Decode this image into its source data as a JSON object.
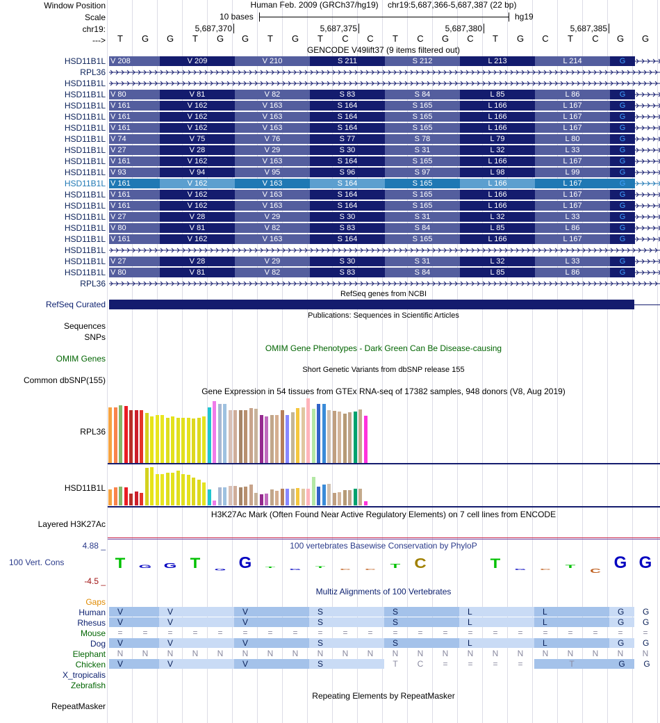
{
  "header": {
    "window_position_label": "Window Position",
    "assembly_text": "Human Feb. 2009 (GRCh37/hg19)",
    "position_text": "chr19:5,687,366-5,687,387 (22 bp)",
    "scale_label": "Scale",
    "scale_text": "10 bases",
    "scale_db": "hg19",
    "chrom_label": "chr19:",
    "strand_label": "--->",
    "coords": [
      "5,687,370",
      "5,687,375",
      "5,687,380",
      "5,687,385"
    ],
    "bases": [
      "T",
      "G",
      "G",
      "T",
      "G",
      "G",
      "T",
      "G",
      "T",
      "C",
      "C",
      "T",
      "C",
      "G",
      "C",
      "T",
      "G",
      "C",
      "T",
      "C",
      "G",
      "G"
    ]
  },
  "gencode": {
    "title": "GENCODE V49lift37 (9 items filtered out)",
    "rows": [
      {
        "label": "HSD11B1L",
        "type": "coding",
        "codons": [
          "V 208",
          "V 209",
          "V 210",
          "S 211",
          "S 212",
          "L 213",
          "L 214"
        ],
        "last": "G"
      },
      {
        "label": "RPL36",
        "type": "intron"
      },
      {
        "label": "HSD11B1L",
        "type": "intron"
      },
      {
        "label": "HSD11B1L",
        "type": "coding",
        "codons": [
          "V 80",
          "V 81",
          "V 82",
          "S 83",
          "S 84",
          "L 85",
          "L 86"
        ],
        "last": "G"
      },
      {
        "label": "HSD11B1L",
        "type": "coding",
        "codons": [
          "V 161",
          "V 162",
          "V 163",
          "S 164",
          "S 165",
          "L 166",
          "L 167"
        ],
        "last": "G"
      },
      {
        "label": "HSD11B1L",
        "type": "coding",
        "codons": [
          "V 161",
          "V 162",
          "V 163",
          "S 164",
          "S 165",
          "L 166",
          "L 167"
        ],
        "last": "G"
      },
      {
        "label": "HSD11B1L",
        "type": "coding",
        "codons": [
          "V 161",
          "V 162",
          "V 163",
          "S 164",
          "S 165",
          "L 166",
          "L 167"
        ],
        "last": "G"
      },
      {
        "label": "HSD11B1L",
        "type": "coding",
        "codons": [
          "V 74",
          "V 75",
          "V 76",
          "S 77",
          "S 78",
          "L 79",
          "L 80"
        ],
        "last": "G"
      },
      {
        "label": "HSD11B1L",
        "type": "coding",
        "codons": [
          "V 27",
          "V 28",
          "V 29",
          "S 30",
          "S 31",
          "L 32",
          "L 33"
        ],
        "last": "G"
      },
      {
        "label": "HSD11B1L",
        "type": "coding",
        "codons": [
          "V 161",
          "V 162",
          "V 163",
          "S 164",
          "S 165",
          "L 166",
          "L 167"
        ],
        "last": "G"
      },
      {
        "label": "HSD11B1L",
        "type": "coding",
        "codons": [
          "V 93",
          "V 94",
          "V 95",
          "S 96",
          "S 97",
          "L 98",
          "L 99"
        ],
        "last": "G"
      },
      {
        "label": "HSD11B1L",
        "type": "coding",
        "highlight": true,
        "codons": [
          "V 161",
          "V 162",
          "V 163",
          "S 164",
          "S 165",
          "L 166",
          "L 167"
        ],
        "last": "G"
      },
      {
        "label": "HSD11B1L",
        "type": "coding",
        "codons": [
          "V 161",
          "V 162",
          "V 163",
          "S 164",
          "S 165",
          "L 166",
          "L 167"
        ],
        "last": "G"
      },
      {
        "label": "HSD11B1L",
        "type": "coding",
        "codons": [
          "V 161",
          "V 162",
          "V 163",
          "S 164",
          "S 165",
          "L 166",
          "L 167"
        ],
        "last": "G"
      },
      {
        "label": "HSD11B1L",
        "type": "coding",
        "codons": [
          "V 27",
          "V 28",
          "V 29",
          "S 30",
          "S 31",
          "L 32",
          "L 33"
        ],
        "last": "G"
      },
      {
        "label": "HSD11B1L",
        "type": "coding",
        "codons": [
          "V 80",
          "V 81",
          "V 82",
          "S 83",
          "S 84",
          "L 85",
          "L 86"
        ],
        "last": "G"
      },
      {
        "label": "HSD11B1L",
        "type": "coding",
        "codons": [
          "V 161",
          "V 162",
          "V 163",
          "S 164",
          "S 165",
          "L 166",
          "L 167"
        ],
        "last": "G"
      },
      {
        "label": "HSD11B1L",
        "type": "intron"
      },
      {
        "label": "HSD11B1L",
        "type": "coding",
        "codons": [
          "V 27",
          "V 28",
          "V 29",
          "S 30",
          "S 31",
          "L 32",
          "L 33"
        ],
        "last": "G"
      },
      {
        "label": "HSD11B1L",
        "type": "coding",
        "codons": [
          "V 80",
          "V 81",
          "V 82",
          "S 83",
          "S 84",
          "L 85",
          "L 86"
        ],
        "last": "G"
      },
      {
        "label": "RPL36",
        "type": "intron"
      }
    ]
  },
  "refseq": {
    "title": "RefSeq genes from NCBI",
    "label": "RefSeq Curated"
  },
  "publications": {
    "title": "Publications: Sequences in Scientific Articles",
    "label_line1": "Sequences",
    "label_line2": "SNPs"
  },
  "omim": {
    "title": "OMIM Gene Phenotypes - Dark Green Can Be Disease-causing",
    "label": "OMIM Genes"
  },
  "dbsnp": {
    "title": "Short Genetic Variants from dbSNP release 155",
    "label": "Common dbSNP(155)"
  },
  "gtex": {
    "title": "Gene Expression in 54 tissues from GTEx RNA-seq of 17382 samples, 948 donors (V8, Aug 2019)",
    "colors": [
      "#f5a341",
      "#f9844b",
      "#86b86a",
      "#ea1c24",
      "#b72e28",
      "#cc1e2b",
      "#e5332a",
      "#d3d11f",
      "#e6e319",
      "#e8e51f",
      "#e8e520",
      "#dede1d",
      "#e3e11c",
      "#e0df1e",
      "#e2e01d",
      "#e4e11f",
      "#ddd81f",
      "#dcd91f",
      "#e5e31f",
      "#1fc5cf",
      "#ef7bea",
      "#a7b8d3",
      "#9ec1e0",
      "#d8c0b6",
      "#cfad9a",
      "#a68567",
      "#b8906f",
      "#c8a48b",
      "#c7b39a",
      "#952a8f",
      "#bf6abd",
      "#c1a68a",
      "#d5ae8f",
      "#b57f5a",
      "#8888ff",
      "#c5b696",
      "#f5c73e",
      "#e0c7a0",
      "#ffb4bb",
      "#b3e8a5",
      "#3163c8",
      "#3a8bd8",
      "#d0c0b0",
      "#c09f7f",
      "#d3b59a",
      "#b69a75",
      "#bfa58b",
      "#00a26d",
      "#c4aa8c",
      "#ff33dd"
    ],
    "rpl36": {
      "label": "RPL36",
      "values": [
        0.86,
        0.86,
        0.89,
        0.88,
        0.82,
        0.82,
        0.82,
        0.77,
        0.72,
        0.74,
        0.74,
        0.7,
        0.72,
        0.7,
        0.7,
        0.7,
        0.69,
        0.7,
        0.72,
        0.86,
        0.96,
        0.91,
        0.91,
        0.82,
        0.82,
        0.82,
        0.82,
        0.85,
        0.84,
        0.74,
        0.72,
        0.74,
        0.74,
        0.82,
        0.74,
        0.79,
        0.85,
        0.86,
        1.0,
        0.84,
        0.91,
        0.91,
        0.82,
        0.81,
        0.8,
        0.76,
        0.79,
        0.8,
        0.83,
        0.73
      ]
    },
    "hsd11b1l": {
      "label": "HSD11B1L",
      "values": [
        0.41,
        0.47,
        0.49,
        0.47,
        0.3,
        0.36,
        0.33,
        0.98,
        1.0,
        0.82,
        0.82,
        0.85,
        0.85,
        0.91,
        0.82,
        0.8,
        0.73,
        0.67,
        0.6,
        0.41,
        0.13,
        0.47,
        0.47,
        0.51,
        0.51,
        0.47,
        0.49,
        0.54,
        0.33,
        0.29,
        0.31,
        0.41,
        0.38,
        0.44,
        0.44,
        0.44,
        0.45,
        0.44,
        0.44,
        0.74,
        0.49,
        0.54,
        0.57,
        0.33,
        0.35,
        0.4,
        0.4,
        0.44,
        0.44,
        0.1
      ]
    }
  },
  "h3k27ac": {
    "title": "H3K27Ac Mark (Often Found Near Active Regulatory Elements) on 7 cell lines from ENCODE",
    "label": "Layered H3K27Ac"
  },
  "phylop": {
    "title": "100 vertebrates Basewise Conservation by PhyloP",
    "label": "100 Vert. Cons",
    "max": "4.88 _",
    "min": "-4.5 _",
    "bases": [
      "T",
      "G",
      "G",
      "T",
      "G",
      "G",
      "T",
      "G",
      "T",
      "C",
      "C",
      "T",
      "C",
      "G",
      "C",
      "T",
      "G",
      "C",
      "T",
      "C",
      "G",
      "G"
    ],
    "values": [
      3.2,
      1.0,
      1.5,
      3.2,
      -0.6,
      3.4,
      0.3,
      -0.1,
      0.6,
      -0.3,
      -0.2,
      1.3,
      3.0,
      0,
      0,
      2.9,
      -0.3,
      -0.4,
      0.9,
      -1.3,
      3.6,
      3.6
    ]
  },
  "multiz": {
    "title": "Multiz Alignments of 100 Vertebrates",
    "gaps_label": "Gaps",
    "rows": [
      {
        "label": "Human",
        "color": "#0a1e6e",
        "kind": "aa",
        "cells": [
          "V",
          "V",
          "V",
          "S",
          "S",
          "L",
          "L",
          "G",
          "G"
        ],
        "shade": [
          1,
          1,
          1,
          1,
          1,
          1,
          1,
          1,
          0
        ]
      },
      {
        "label": "Rhesus",
        "color": "#0a1e6e",
        "kind": "aa",
        "cells": [
          "V",
          "V",
          "V",
          "S",
          "S",
          "L",
          "L",
          "G",
          "G"
        ],
        "shade": [
          1,
          1,
          1,
          1,
          1,
          1,
          1,
          1,
          0
        ]
      },
      {
        "label": "Mouse",
        "color": "#006400",
        "kind": "nt",
        "cells": [
          "=",
          "=",
          "=",
          "=",
          "=",
          "=",
          "=",
          "=",
          "=",
          "=",
          "=",
          "=",
          "=",
          "=",
          "=",
          "=",
          "=",
          "=",
          "=",
          "=",
          "=",
          "="
        ],
        "shade": []
      },
      {
        "label": "Dog",
        "color": "#0a1e6e",
        "kind": "aa",
        "cells": [
          "V",
          "V",
          "V",
          "S",
          "S",
          "L",
          "L",
          "G",
          "G"
        ],
        "shade": [
          1,
          1,
          1,
          1,
          1,
          1,
          1,
          1,
          0
        ]
      },
      {
        "label": "Elephant",
        "color": "#006400",
        "kind": "nt",
        "cells": [
          "N",
          "N",
          "N",
          "N",
          "N",
          "N",
          "N",
          "N",
          "N",
          "N",
          "N",
          "N",
          "N",
          "N",
          "N",
          "N",
          "N",
          "N",
          "N",
          "N",
          "N",
          "N"
        ],
        "shade": []
      },
      {
        "label": "Chicken",
        "color": "#006400",
        "kind": "mixed",
        "cells": [
          "V",
          "V",
          "V",
          "S",
          "T",
          "C",
          "=",
          "=",
          "=",
          "=",
          "T",
          "G",
          "G"
        ],
        "shade": []
      },
      {
        "label": "X_tropicalis",
        "color": "#0a1e6e",
        "kind": "empty"
      },
      {
        "label": "Zebrafish",
        "color": "#006400",
        "kind": "empty"
      }
    ]
  },
  "repeatmasker": {
    "title": "Repeating Elements by RepeatMasker",
    "label": "RepeatMasker"
  }
}
